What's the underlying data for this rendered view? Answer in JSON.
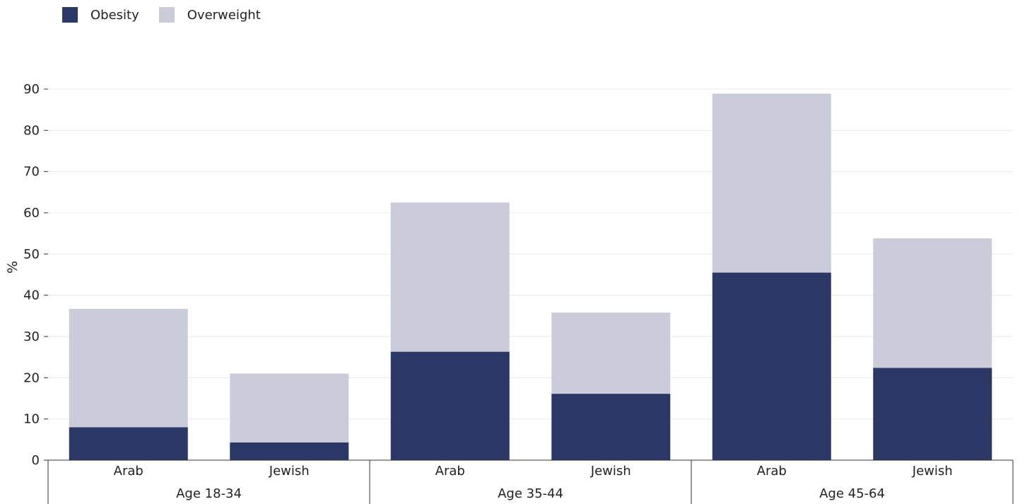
{
  "chart_data": {
    "type": "bar",
    "stacked": true,
    "title": "",
    "xlabel": "",
    "ylabel": "%",
    "ylim": [
      0,
      90
    ],
    "yticks": [
      0,
      10,
      20,
      30,
      40,
      50,
      60,
      70,
      80,
      90
    ],
    "grid": true,
    "legend_position": "top-left",
    "groups": [
      {
        "label": "Age 18-34",
        "categories": [
          "Arab",
          "Jewish"
        ]
      },
      {
        "label": "Age 35-44",
        "categories": [
          "Arab",
          "Jewish"
        ]
      },
      {
        "label": "Age 45-64",
        "categories": [
          "Arab",
          "Jewish"
        ]
      }
    ],
    "categories": [
      "Arab",
      "Jewish",
      "Arab",
      "Jewish",
      "Arab",
      "Jewish"
    ],
    "series": [
      {
        "name": "Obesity",
        "color": "#2b3764",
        "values": [
          8.0,
          4.3,
          26.3,
          16.1,
          45.5,
          22.4
        ]
      },
      {
        "name": "Overweight",
        "color": "#cacdd9",
        "values": [
          28.7,
          16.7,
          36.2,
          19.7,
          43.4,
          31.4
        ]
      }
    ]
  }
}
